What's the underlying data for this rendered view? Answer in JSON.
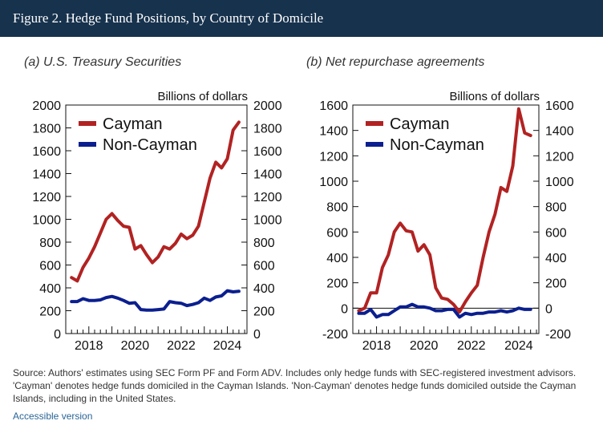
{
  "header": {
    "title": "Figure 2. Hedge Fund Positions, by Country of Domicile"
  },
  "footer": {
    "source_text": "Source: Authors' estimates using SEC Form PF and Form ADV. Includes only hedge funds with SEC-registered investment advisors. 'Cayman' denotes hedge funds domiciled in the Cayman Islands. 'Non-Cayman' denotes hedge funds domiciled outside the Cayman Islands, including in the United States.",
    "accessible_link": "Accessible version"
  },
  "colors": {
    "cayman": "#b22222",
    "non_cayman": "#0b1f8f",
    "header_bg": "#17324d"
  },
  "chart_data": [
    {
      "type": "line",
      "title": "(a) U.S. Treasury Securities",
      "unit_label": "Billions of dollars",
      "ylim": [
        0,
        2000
      ],
      "yticks": [
        0,
        200,
        400,
        600,
        800,
        1000,
        1200,
        1400,
        1600,
        1800,
        2000
      ],
      "xlim": [
        2017.0,
        2024.85
      ],
      "xticks": [
        2018,
        2020,
        2022,
        2024
      ],
      "series": [
        {
          "name": "Cayman",
          "x": [
            2017.25,
            2017.5,
            2017.75,
            2018.0,
            2018.25,
            2018.5,
            2018.75,
            2019.0,
            2019.25,
            2019.5,
            2019.75,
            2020.0,
            2020.25,
            2020.5,
            2020.75,
            2021.0,
            2021.25,
            2021.5,
            2021.75,
            2022.0,
            2022.25,
            2022.5,
            2022.75,
            2023.0,
            2023.25,
            2023.5,
            2023.75,
            2024.0,
            2024.25,
            2024.5
          ],
          "y": [
            490,
            460,
            580,
            660,
            760,
            880,
            1000,
            1050,
            990,
            940,
            930,
            740,
            770,
            690,
            620,
            670,
            760,
            740,
            790,
            870,
            830,
            860,
            940,
            1150,
            1360,
            1500,
            1450,
            1530,
            1780,
            1850
          ]
        },
        {
          "name": "Non-Cayman",
          "x": [
            2017.25,
            2017.5,
            2017.75,
            2018.0,
            2018.25,
            2018.5,
            2018.75,
            2019.0,
            2019.25,
            2019.5,
            2019.75,
            2020.0,
            2020.25,
            2020.5,
            2020.75,
            2021.0,
            2021.25,
            2021.5,
            2021.75,
            2022.0,
            2022.25,
            2022.5,
            2022.75,
            2023.0,
            2023.25,
            2023.5,
            2023.75,
            2024.0,
            2024.25,
            2024.5
          ],
          "y": [
            280,
            280,
            305,
            290,
            290,
            295,
            315,
            325,
            310,
            290,
            265,
            270,
            210,
            205,
            205,
            210,
            215,
            280,
            270,
            265,
            245,
            255,
            270,
            310,
            290,
            320,
            330,
            375,
            365,
            370
          ]
        }
      ]
    },
    {
      "type": "line",
      "title": "(b) Net repurchase agreements",
      "unit_label": "Billions of dollars",
      "ylim": [
        -200,
        1600
      ],
      "yticks": [
        -200,
        0,
        200,
        400,
        600,
        800,
        1000,
        1200,
        1400,
        1600
      ],
      "xlim": [
        2017.0,
        2024.85
      ],
      "xticks": [
        2018,
        2020,
        2022,
        2024
      ],
      "series": [
        {
          "name": "Cayman",
          "x": [
            2017.25,
            2017.5,
            2017.75,
            2018.0,
            2018.25,
            2018.5,
            2018.75,
            2019.0,
            2019.25,
            2019.5,
            2019.75,
            2020.0,
            2020.25,
            2020.5,
            2020.75,
            2021.0,
            2021.25,
            2021.5,
            2021.75,
            2022.0,
            2022.25,
            2022.5,
            2022.75,
            2023.0,
            2023.25,
            2023.5,
            2023.75,
            2024.0,
            2024.25,
            2024.5
          ],
          "y": [
            -20,
            0,
            120,
            120,
            320,
            420,
            600,
            670,
            610,
            600,
            450,
            500,
            420,
            160,
            80,
            70,
            30,
            -30,
            50,
            120,
            180,
            400,
            600,
            740,
            950,
            920,
            1120,
            1570,
            1380,
            1360
          ]
        },
        {
          "name": "Non-Cayman",
          "x": [
            2017.25,
            2017.5,
            2017.75,
            2018.0,
            2018.25,
            2018.5,
            2018.75,
            2019.0,
            2019.25,
            2019.5,
            2019.75,
            2020.0,
            2020.25,
            2020.5,
            2020.75,
            2021.0,
            2021.25,
            2021.5,
            2021.75,
            2022.0,
            2022.25,
            2022.5,
            2022.75,
            2023.0,
            2023.25,
            2023.5,
            2023.75,
            2024.0,
            2024.25,
            2024.5
          ],
          "y": [
            -40,
            -40,
            -10,
            -70,
            -50,
            -50,
            -20,
            10,
            10,
            30,
            10,
            10,
            0,
            -20,
            -20,
            -10,
            -10,
            -70,
            -40,
            -50,
            -40,
            -40,
            -30,
            -30,
            -20,
            -30,
            -20,
            0,
            -10,
            -10
          ]
        }
      ]
    }
  ]
}
